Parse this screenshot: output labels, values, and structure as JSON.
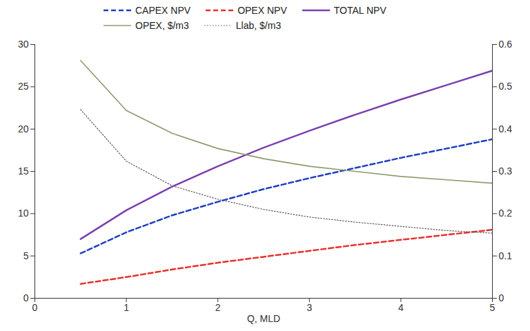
{
  "chart_data": {
    "type": "line",
    "xlabel": "Q, MLD",
    "legend": "top",
    "x": [
      0.5,
      1,
      1.5,
      2,
      2.5,
      3,
      3.5,
      4,
      4.5,
      5
    ],
    "xlim": [
      0,
      5
    ],
    "xticks": [
      0,
      1,
      2,
      3,
      4,
      5
    ],
    "ylim": [
      0,
      30
    ],
    "yticks": [
      0,
      5,
      10,
      15,
      20,
      25,
      30
    ],
    "y2lim": [
      0,
      0.6
    ],
    "y2ticks": [
      0,
      0.1,
      0.2,
      0.3,
      0.4,
      0.5,
      0.6
    ],
    "series": [
      {
        "name": "CAPEX NPV",
        "color": "#1f3fbf",
        "line_style": "dashed",
        "values": [
          5.3,
          7.8,
          9.8,
          11.4,
          12.9,
          14.2,
          15.4,
          16.6,
          17.7,
          18.8
        ]
      },
      {
        "name": "OPEX NPV",
        "color": "#e8302a",
        "line_style": "dashed",
        "values": [
          1.7,
          2.5,
          3.4,
          4.2,
          4.9,
          5.6,
          6.3,
          6.9,
          7.5,
          8.1
        ]
      },
      {
        "name": "TOTAL NPV",
        "color": "#7a3fb0",
        "line_style": "solid",
        "values": [
          7.0,
          10.4,
          13.2,
          15.6,
          17.8,
          19.8,
          21.7,
          23.5,
          25.2,
          26.9
        ]
      },
      {
        "name": "OPEX, $/m3",
        "color": "#8c9a6e",
        "line_style": "solid",
        "axis": "y2",
        "values": [
          0.562,
          0.444,
          0.39,
          0.354,
          0.33,
          0.312,
          0.3,
          0.288,
          0.28,
          0.272
        ]
      },
      {
        "name": "Llab, $/m3",
        "color": "#555555",
        "line_style": "dotted",
        "axis": "y2",
        "values": [
          0.446,
          0.324,
          0.266,
          0.234,
          0.21,
          0.192,
          0.18,
          0.17,
          0.16,
          0.154
        ]
      }
    ]
  }
}
